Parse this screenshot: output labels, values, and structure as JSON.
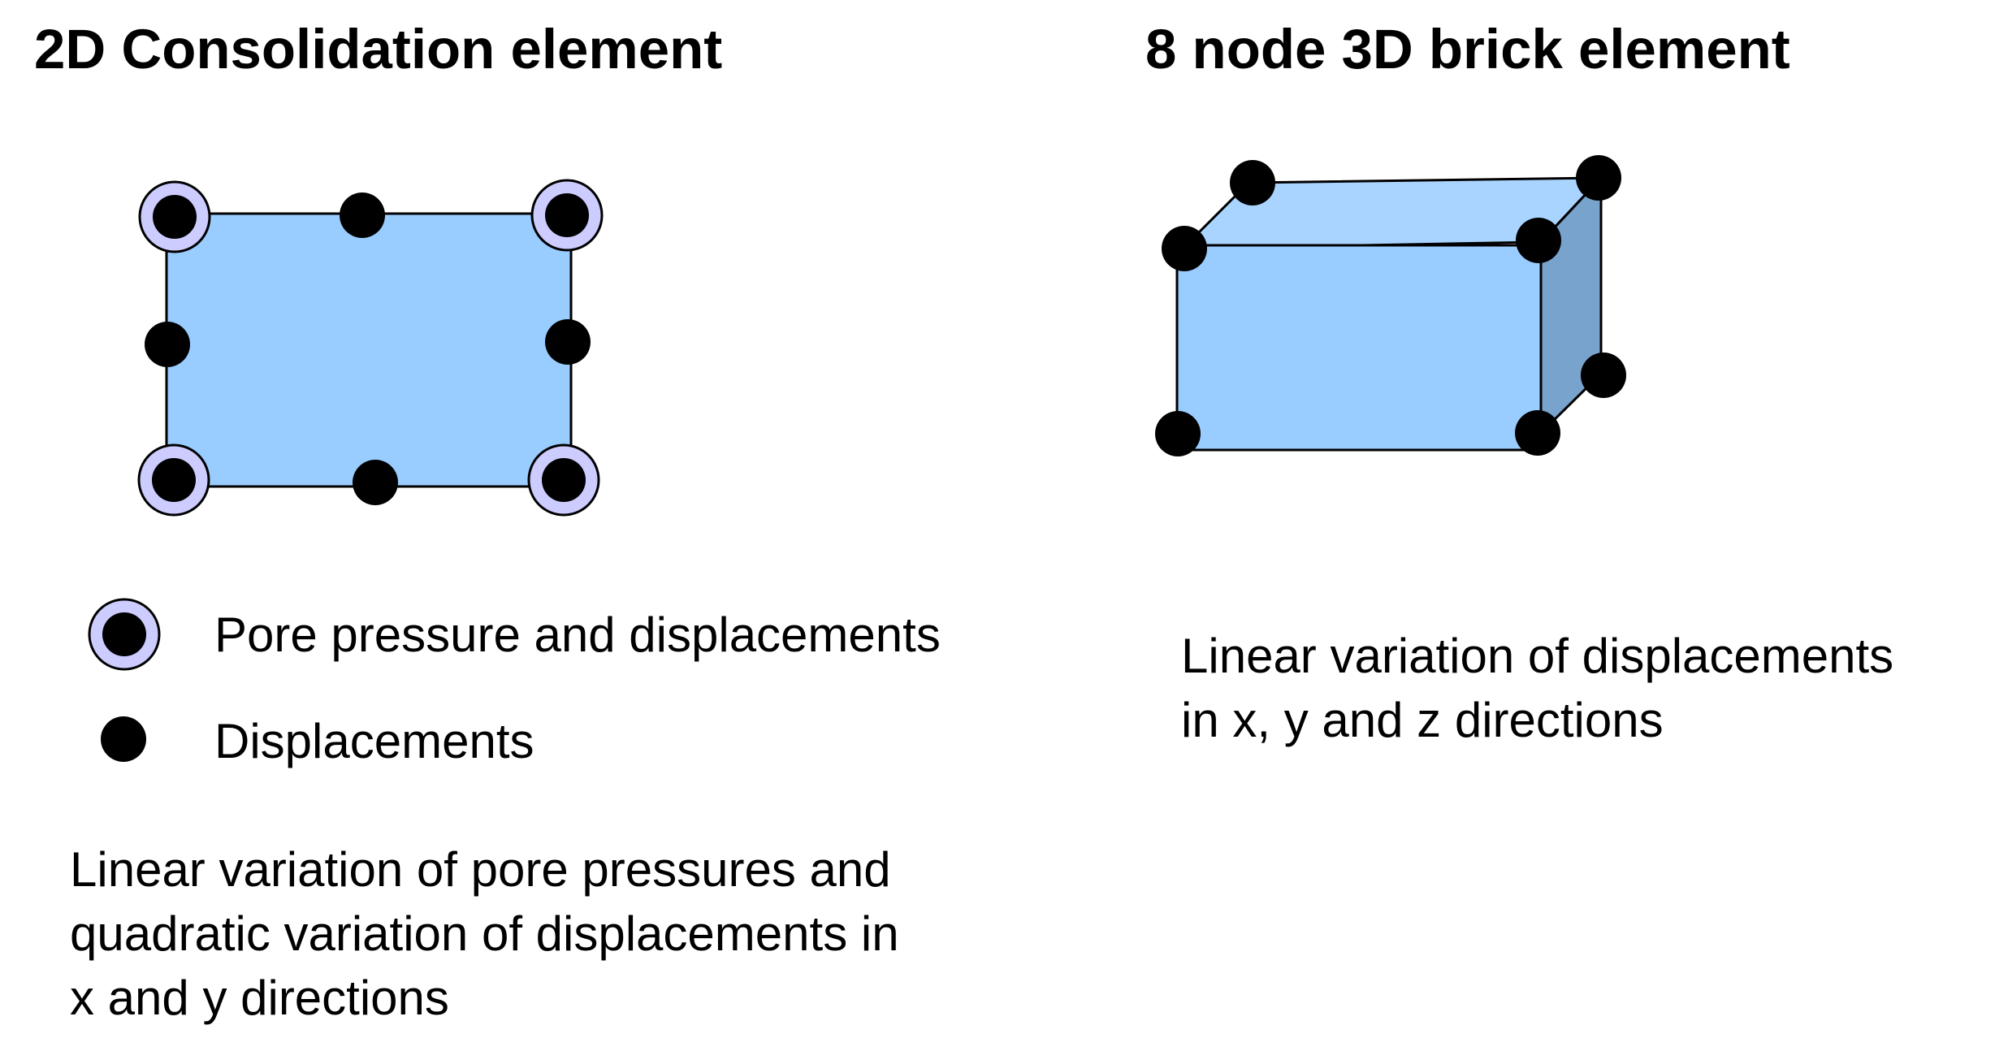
{
  "left_panel": {
    "title": "2D Consolidation element",
    "legend": {
      "pore_pressure_label": "Pore pressure and displacements",
      "displacement_label": "Displacements"
    },
    "description": "Linear variation of pore pressures and\nquadratic variation of displacements in\nx and y directions"
  },
  "right_panel": {
    "title": "8 node 3D brick element",
    "description": "Linear variation of displacements\nin x, y and z directions"
  },
  "colors": {
    "element_fill": "#99CCFF",
    "brick_top_fill": "#A9D4FF",
    "brick_side_fill": "#77A3CC",
    "pore_ring_fill": "#CCCCFF",
    "node_fill": "#000000",
    "stroke": "#000000"
  }
}
